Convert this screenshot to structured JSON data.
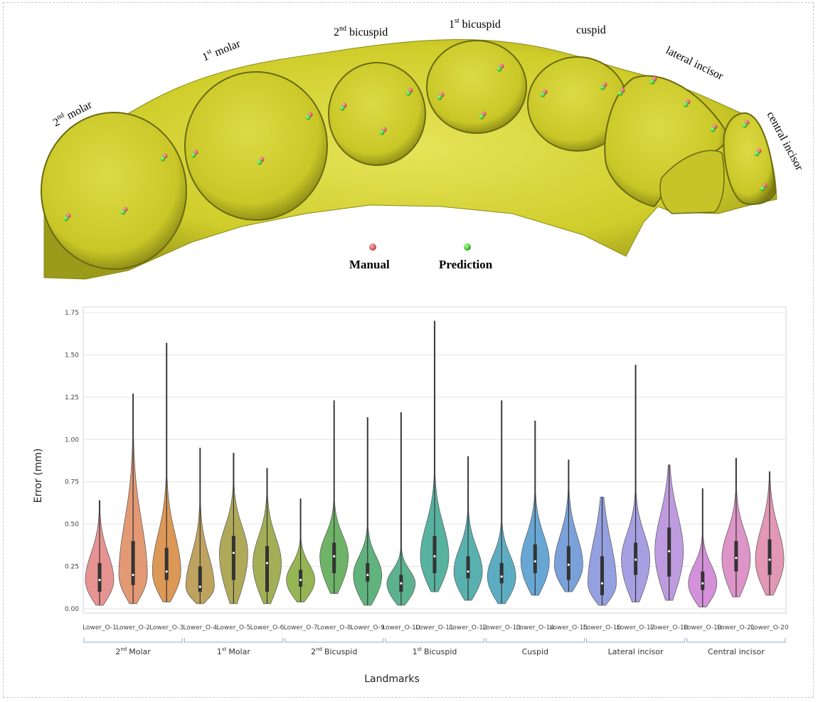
{
  "illustration": {
    "tooth_labels": [
      {
        "base": "2",
        "sup": "nd",
        "rest": "molar"
      },
      {
        "base": "1",
        "sup": "st",
        "rest": "molar"
      },
      {
        "base": "2",
        "sup": "nd",
        "rest": "bicuspid"
      },
      {
        "base": "1",
        "sup": "st",
        "rest": "bicuspid"
      },
      {
        "base": "cuspid",
        "sup": "",
        "rest": ""
      },
      {
        "base": "lateral incisor",
        "sup": "",
        "rest": ""
      },
      {
        "base": "central incisor",
        "sup": "",
        "rest": ""
      }
    ],
    "legend": {
      "manual": "Manual",
      "prediction": "Prediction"
    },
    "colors": {
      "tooth": "#d6d430",
      "tooth_dark": "#6b6a10",
      "manual": "#e2686a",
      "prediction": "#52d63c"
    }
  },
  "chart_data": {
    "type": "violin",
    "title": "",
    "xlabel": "Landmarks",
    "ylabel": "Error (mm)",
    "ylim": [
      0,
      1.78
    ],
    "yticks": [
      "0.00",
      "0.25",
      "0.50",
      "0.75",
      "1.00",
      "1.25",
      "1.50",
      "1.75"
    ],
    "grid": true,
    "categories": [
      "Lower_O-1",
      "Lower_O-2",
      "Lower_O-3",
      "Lower_O-4",
      "Lower_O-5",
      "Lower_O-6",
      "Lower_O-7",
      "Lower_O-8",
      "Lower_O-9",
      "Lower_O-10",
      "Lower_O-11",
      "Lower_O-12",
      "Lower_O-13",
      "Lower_O-14",
      "Lower_O-15",
      "Lower_O-16",
      "Lower_O-17",
      "Lower_O-18",
      "Lower_O-19",
      "Lower_O-21",
      "Lower_O-20"
    ],
    "colors": [
      "#e48a88",
      "#e09068",
      "#d98f48",
      "#b99a52",
      "#a8a24c",
      "#9aa848",
      "#8caf46",
      "#62ac5a",
      "#52ad72",
      "#4eab86",
      "#4aab98",
      "#4aaaa8",
      "#4fa6bd",
      "#5b9fd0",
      "#6f99d6",
      "#8b98dc",
      "#a197e0",
      "#b992dc",
      "#d088d6",
      "#da8cc3",
      "#e08fae"
    ],
    "values": [
      {
        "min": 0.02,
        "q1": 0.1,
        "median": 0.17,
        "q3": 0.27,
        "max": 0.64
      },
      {
        "min": 0.03,
        "q1": 0.14,
        "median": 0.2,
        "q3": 0.4,
        "max": 1.27
      },
      {
        "min": 0.04,
        "q1": 0.17,
        "median": 0.22,
        "q3": 0.36,
        "max": 1.57
      },
      {
        "min": 0.03,
        "q1": 0.1,
        "median": 0.13,
        "q3": 0.25,
        "max": 0.95
      },
      {
        "min": 0.03,
        "q1": 0.17,
        "median": 0.33,
        "q3": 0.43,
        "max": 0.92
      },
      {
        "min": 0.03,
        "q1": 0.1,
        "median": 0.27,
        "q3": 0.37,
        "max": 0.83
      },
      {
        "min": 0.04,
        "q1": 0.13,
        "median": 0.17,
        "q3": 0.23,
        "max": 0.65
      },
      {
        "min": 0.09,
        "q1": 0.21,
        "median": 0.31,
        "q3": 0.39,
        "max": 1.23
      },
      {
        "min": 0.02,
        "q1": 0.16,
        "median": 0.2,
        "q3": 0.27,
        "max": 1.13
      },
      {
        "min": 0.02,
        "q1": 0.1,
        "median": 0.15,
        "q3": 0.2,
        "max": 1.16
      },
      {
        "min": 0.1,
        "q1": 0.21,
        "median": 0.31,
        "q3": 0.43,
        "max": 1.7
      },
      {
        "min": 0.05,
        "q1": 0.18,
        "median": 0.22,
        "q3": 0.31,
        "max": 0.9
      },
      {
        "min": 0.03,
        "q1": 0.15,
        "median": 0.19,
        "q3": 0.27,
        "max": 1.23
      },
      {
        "min": 0.08,
        "q1": 0.21,
        "median": 0.28,
        "q3": 0.38,
        "max": 1.11
      },
      {
        "min": 0.1,
        "q1": 0.17,
        "median": 0.26,
        "q3": 0.37,
        "max": 0.88
      },
      {
        "min": 0.02,
        "q1": 0.08,
        "median": 0.15,
        "q3": 0.31,
        "max": 0.66
      },
      {
        "min": 0.04,
        "q1": 0.2,
        "median": 0.29,
        "q3": 0.39,
        "max": 1.44
      },
      {
        "min": 0.05,
        "q1": 0.19,
        "median": 0.34,
        "q3": 0.48,
        "max": 0.85
      },
      {
        "min": 0.01,
        "q1": 0.11,
        "median": 0.15,
        "q3": 0.22,
        "max": 0.71
      },
      {
        "min": 0.07,
        "q1": 0.22,
        "median": 0.3,
        "q3": 0.4,
        "max": 0.89
      },
      {
        "min": 0.08,
        "q1": 0.2,
        "median": 0.29,
        "q3": 0.41,
        "max": 0.81
      }
    ],
    "groups": [
      {
        "base": "2",
        "sup": "nd",
        "rest": "Molar",
        "span": [
          0,
          2
        ]
      },
      {
        "base": "1",
        "sup": "st",
        "rest": "Molar",
        "span": [
          3,
          5
        ]
      },
      {
        "base": "2",
        "sup": "nd",
        "rest": "Bicuspid",
        "span": [
          6,
          8
        ]
      },
      {
        "base": "1",
        "sup": "st",
        "rest": "Bicuspid",
        "span": [
          9,
          11
        ]
      },
      {
        "base": "Cuspid",
        "sup": "",
        "rest": "",
        "span": [
          12,
          14
        ]
      },
      {
        "base": "Lateral incisor",
        "sup": "",
        "rest": "",
        "span": [
          15,
          17
        ]
      },
      {
        "base": "Central incisor",
        "sup": "",
        "rest": "",
        "span": [
          18,
          20
        ]
      }
    ]
  }
}
